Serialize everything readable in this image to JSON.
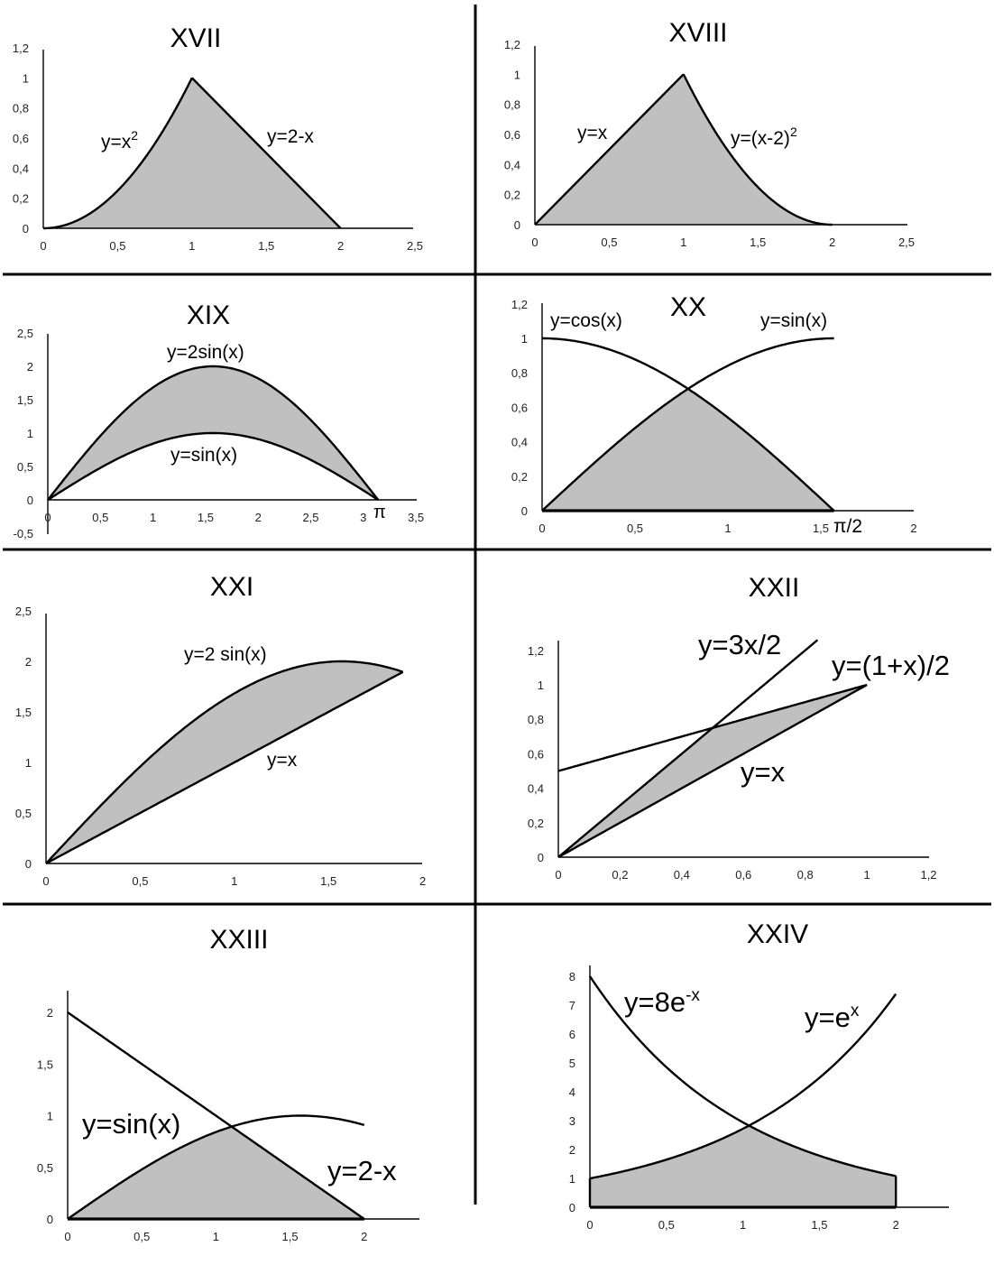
{
  "chart_data": [
    {
      "type": "area",
      "title": "XVII",
      "xlim": [
        0,
        2.5
      ],
      "ylim": [
        0,
        1.2
      ],
      "xticks": [
        "0",
        "0,5",
        "1",
        "1,5",
        "2",
        "2,5"
      ],
      "yticks": [
        "0",
        "0,2",
        "0,4",
        "0,6",
        "0,8",
        "1",
        "1,2"
      ],
      "series": [
        {
          "expr": "x^2",
          "domain": [
            0,
            1
          ],
          "label_base": "y=x",
          "label_sup": "2"
        },
        {
          "expr": "2-x",
          "domain": [
            1,
            2
          ],
          "label_base": "y=2-x",
          "label_sup": ""
        }
      ],
      "shaded_region": {
        "x": [
          0,
          1,
          2
        ],
        "description_upper": [
          "x^2",
          "2-x"
        ],
        "lower": "0"
      }
    },
    {
      "type": "area",
      "title": "XVIII",
      "xlim": [
        0,
        2.5
      ],
      "ylim": [
        0,
        1.2
      ],
      "xticks": [
        "0",
        "0,5",
        "1",
        "1,5",
        "2",
        "2,5"
      ],
      "yticks": [
        "0",
        "0,2",
        "0,4",
        "0,6",
        "0,8",
        "1",
        "1,2"
      ],
      "series": [
        {
          "expr": "x",
          "domain": [
            0,
            1
          ],
          "label_base": "y=x",
          "label_sup": ""
        },
        {
          "expr": "(x-2)^2",
          "domain": [
            1,
            2
          ],
          "label_base": "y=(x-2)",
          "label_sup": "2"
        }
      ],
      "shaded_region": {
        "x": [
          0,
          1,
          2
        ],
        "lower": "0"
      }
    },
    {
      "type": "area",
      "title": "XIX",
      "xlim": [
        0,
        3.5
      ],
      "ylim": [
        -0.5,
        2.5
      ],
      "xticks": [
        "0",
        "0,5",
        "1",
        "1,5",
        "2",
        "2,5",
        "3",
        "3,5"
      ],
      "yticks": [
        "-0,5",
        "0",
        "0,5",
        "1",
        "1,5",
        "2",
        "2,5"
      ],
      "special_xtick": "π",
      "series": [
        {
          "expr": "2*sin(x)",
          "domain": [
            0,
            3.1416
          ],
          "label_base": "y=2sin(x)",
          "label_sup": ""
        },
        {
          "expr": "sin(x)",
          "domain": [
            0,
            3.1416
          ],
          "label_base": "y=sin(x)",
          "label_sup": ""
        }
      ],
      "shaded_region": {
        "x": [
          0,
          3.1416
        ],
        "upper": "2*sin(x)",
        "lower": "sin(x)"
      }
    },
    {
      "type": "area",
      "title": "XX",
      "xlim": [
        0,
        2
      ],
      "ylim": [
        0,
        1.2
      ],
      "xticks": [
        "0",
        "0,5",
        "1",
        "1,5",
        "2"
      ],
      "yticks": [
        "0",
        "0,2",
        "0,4",
        "0,6",
        "0,8",
        "1",
        "1,2"
      ],
      "special_xtick": "π/2",
      "series": [
        {
          "expr": "cos(x)",
          "domain": [
            0,
            1.5708
          ],
          "label_base": "y=cos(x)",
          "label_sup": ""
        },
        {
          "expr": "sin(x)",
          "domain": [
            0,
            1.5708
          ],
          "label_base": "y=sin(x)",
          "label_sup": ""
        }
      ],
      "shaded_region": {
        "x": [
          0,
          0.7854,
          1.5708
        ],
        "upper": "min(sin(x),cos(x))",
        "lower": "0"
      }
    },
    {
      "type": "area",
      "title": "XXI",
      "xlim": [
        0,
        2
      ],
      "ylim": [
        0,
        2.5
      ],
      "xticks": [
        "0",
        "0,5",
        "1",
        "1,5",
        "2"
      ],
      "yticks": [
        "0",
        "0,5",
        "1",
        "1,5",
        "2",
        "2,5"
      ],
      "series": [
        {
          "expr": "2*sin(x)",
          "domain": [
            0,
            1.895
          ],
          "label_base": "y=2 sin(x)",
          "label_sup": ""
        },
        {
          "expr": "x",
          "domain": [
            0,
            1.895
          ],
          "label_base": "y=x",
          "label_sup": ""
        }
      ],
      "shaded_region": {
        "x": [
          0,
          1.895
        ],
        "upper": "2*sin(x)",
        "lower": "x"
      }
    },
    {
      "type": "area",
      "title": "XXII",
      "xlim": [
        0,
        1.2
      ],
      "ylim": [
        0,
        1.2
      ],
      "xticks": [
        "0",
        "0,2",
        "0,4",
        "0,6",
        "0,8",
        "1",
        "1,2"
      ],
      "yticks": [
        "0",
        "0,2",
        "0,4",
        "0,6",
        "0,8",
        "1",
        "1,2"
      ],
      "series": [
        {
          "expr": "1.5*x",
          "domain": [
            0,
            0.84
          ],
          "label_base": "y=3x/2",
          "label_sup": ""
        },
        {
          "expr": "(1+x)/2",
          "domain": [
            0,
            1
          ],
          "label_base": "y=(1+x)/2",
          "label_sup": ""
        },
        {
          "expr": "x",
          "domain": [
            0,
            1
          ],
          "label_base": "y=x",
          "label_sup": ""
        }
      ],
      "shaded_region": {
        "x": [
          0,
          0.5,
          1
        ],
        "upper": "min(1.5x,(1+x)/2)",
        "lower": "x"
      }
    },
    {
      "type": "area",
      "title": "XXIII",
      "xlim": [
        0,
        2.4
      ],
      "ylim": [
        0,
        2
      ],
      "xticks": [
        "0",
        "0,5",
        "1",
        "1,5",
        "2"
      ],
      "yticks": [
        "0",
        "0,5",
        "1",
        "1,5",
        "2"
      ],
      "series": [
        {
          "expr": "sin(x)",
          "domain": [
            0,
            2
          ],
          "label_base": "y=sin(x)",
          "label_sup": ""
        },
        {
          "expr": "2-x",
          "domain": [
            0,
            2
          ],
          "label_base": "y=2-x",
          "label_sup": ""
        }
      ],
      "shaded_region": {
        "x": [
          0,
          1.106,
          2
        ],
        "upper": "min(sin(x),2-x)",
        "lower": "0"
      }
    },
    {
      "type": "area",
      "title": "XXIV",
      "xlim": [
        0,
        2.35
      ],
      "ylim": [
        0,
        8
      ],
      "xticks": [
        "0",
        "0,5",
        "1",
        "1,5",
        "2"
      ],
      "yticks": [
        "0",
        "1",
        "2",
        "3",
        "4",
        "5",
        "6",
        "7",
        "8"
      ],
      "series": [
        {
          "expr": "8*exp(-x)",
          "domain": [
            0,
            2
          ],
          "label_base": "y=8e",
          "label_sup": "-x"
        },
        {
          "expr": "exp(x)",
          "domain": [
            0,
            2
          ],
          "label_base": "y=e",
          "label_sup": "x"
        }
      ],
      "shaded_region": {
        "x": [
          0,
          1.0397,
          2
        ],
        "upper": "min(8e^-x, e^x)",
        "lower": "0"
      }
    }
  ]
}
